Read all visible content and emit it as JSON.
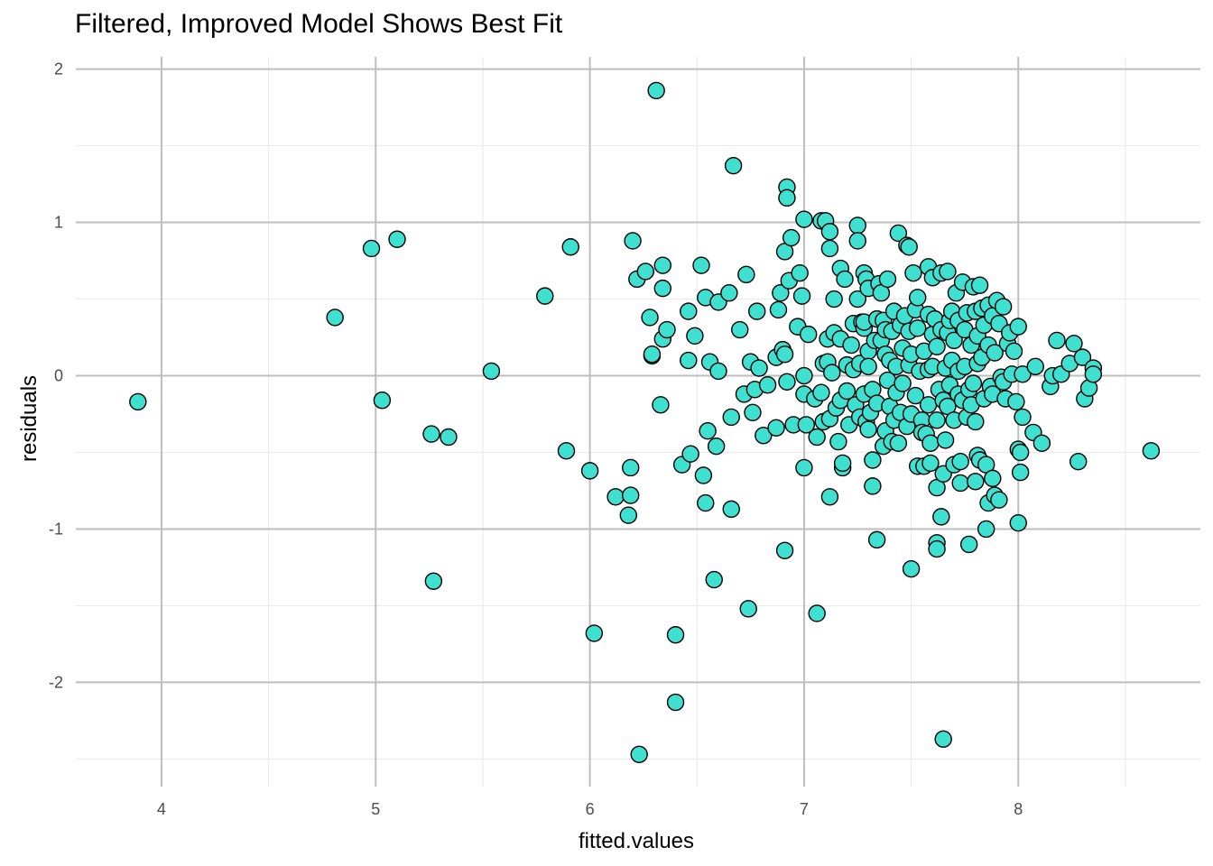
{
  "chart_data": {
    "type": "scatter",
    "title": "Filtered, Improved Model Shows Best Fit",
    "xlabel": "fitted.values",
    "ylabel": "residuals",
    "xlim": [
      3.6,
      8.85
    ],
    "ylim": [
      -2.68,
      2.08
    ],
    "x_ticks": [
      4,
      5,
      6,
      7,
      8
    ],
    "y_ticks": [
      -2,
      -1,
      0,
      1,
      2
    ],
    "x_tick_labels": [
      "4",
      "5",
      "6",
      "7",
      "8"
    ],
    "y_tick_labels": [
      "-2",
      "-1",
      "0",
      "1",
      "2"
    ],
    "grid": true,
    "point_fill": "#40E0D0",
    "point_stroke": "#000000",
    "points": [
      {
        "x": 3.89,
        "y": -0.17
      },
      {
        "x": 4.81,
        "y": 0.38
      },
      {
        "x": 4.98,
        "y": 0.83
      },
      {
        "x": 5.03,
        "y": -0.16
      },
      {
        "x": 5.1,
        "y": 0.89
      },
      {
        "x": 5.26,
        "y": -0.38
      },
      {
        "x": 5.27,
        "y": -1.34
      },
      {
        "x": 5.34,
        "y": -0.4
      },
      {
        "x": 5.54,
        "y": 0.03
      },
      {
        "x": 5.79,
        "y": 0.52
      },
      {
        "x": 5.89,
        "y": -0.49
      },
      {
        "x": 5.91,
        "y": 0.84
      },
      {
        "x": 6.0,
        "y": -0.62
      },
      {
        "x": 6.02,
        "y": -1.68
      },
      {
        "x": 6.12,
        "y": -0.79
      },
      {
        "x": 6.18,
        "y": -0.91
      },
      {
        "x": 6.19,
        "y": -0.6
      },
      {
        "x": 6.19,
        "y": -0.78
      },
      {
        "x": 6.2,
        "y": 0.88
      },
      {
        "x": 6.22,
        "y": 0.63
      },
      {
        "x": 6.23,
        "y": -2.47
      },
      {
        "x": 6.26,
        "y": 0.68
      },
      {
        "x": 6.28,
        "y": 0.38
      },
      {
        "x": 6.29,
        "y": 0.13
      },
      {
        "x": 6.29,
        "y": 0.14
      },
      {
        "x": 6.31,
        "y": 1.86
      },
      {
        "x": 6.33,
        "y": -0.19
      },
      {
        "x": 6.34,
        "y": 0.72
      },
      {
        "x": 6.34,
        "y": 0.57
      },
      {
        "x": 6.34,
        "y": 0.24
      },
      {
        "x": 6.36,
        "y": 0.3
      },
      {
        "x": 6.4,
        "y": -1.69
      },
      {
        "x": 6.4,
        "y": -2.13
      },
      {
        "x": 6.43,
        "y": -0.58
      },
      {
        "x": 6.46,
        "y": 0.42
      },
      {
        "x": 6.46,
        "y": 0.1
      },
      {
        "x": 6.47,
        "y": -0.51
      },
      {
        "x": 6.49,
        "y": 0.26
      },
      {
        "x": 6.52,
        "y": 0.72
      },
      {
        "x": 6.53,
        "y": -0.65
      },
      {
        "x": 6.54,
        "y": -0.83
      },
      {
        "x": 6.54,
        "y": 0.51
      },
      {
        "x": 6.55,
        "y": -0.36
      },
      {
        "x": 6.56,
        "y": 0.09
      },
      {
        "x": 6.58,
        "y": -1.33
      },
      {
        "x": 6.59,
        "y": -0.46
      },
      {
        "x": 6.6,
        "y": 0.03
      },
      {
        "x": 6.6,
        "y": 0.48
      },
      {
        "x": 6.65,
        "y": 0.54
      },
      {
        "x": 6.66,
        "y": -0.87
      },
      {
        "x": 6.66,
        "y": -0.27
      },
      {
        "x": 6.67,
        "y": 1.37
      },
      {
        "x": 6.7,
        "y": 0.3
      },
      {
        "x": 6.72,
        "y": -0.12
      },
      {
        "x": 6.73,
        "y": 0.66
      },
      {
        "x": 6.74,
        "y": -1.52
      },
      {
        "x": 6.75,
        "y": 0.09
      },
      {
        "x": 6.76,
        "y": -0.24
      },
      {
        "x": 6.77,
        "y": -0.09
      },
      {
        "x": 6.78,
        "y": 0.42
      },
      {
        "x": 6.79,
        "y": 0.05
      },
      {
        "x": 6.81,
        "y": -0.39
      },
      {
        "x": 6.83,
        "y": -0.06
      },
      {
        "x": 6.87,
        "y": -0.34
      },
      {
        "x": 6.87,
        "y": 0.12
      },
      {
        "x": 6.88,
        "y": 0.43
      },
      {
        "x": 6.89,
        "y": 0.54
      },
      {
        "x": 6.9,
        "y": 0.17
      },
      {
        "x": 6.91,
        "y": 0.14
      },
      {
        "x": 6.91,
        "y": -1.14
      },
      {
        "x": 6.91,
        "y": 0.81
      },
      {
        "x": 6.92,
        "y": 1.23
      },
      {
        "x": 6.92,
        "y": 1.16
      },
      {
        "x": 6.92,
        "y": -0.04
      },
      {
        "x": 6.93,
        "y": 0.62
      },
      {
        "x": 6.94,
        "y": 0.9
      },
      {
        "x": 6.95,
        "y": -0.32
      },
      {
        "x": 6.97,
        "y": 0.32
      },
      {
        "x": 6.98,
        "y": 0.67
      },
      {
        "x": 6.99,
        "y": 0.52
      },
      {
        "x": 7.0,
        "y": 1.02
      },
      {
        "x": 7.0,
        "y": 0.0
      },
      {
        "x": 7.0,
        "y": -0.6
      },
      {
        "x": 7.0,
        "y": -0.12
      },
      {
        "x": 7.01,
        "y": -0.32
      },
      {
        "x": 7.02,
        "y": 0.27
      },
      {
        "x": 7.05,
        "y": -0.15
      },
      {
        "x": 7.06,
        "y": -1.55
      },
      {
        "x": 7.06,
        "y": -0.4
      },
      {
        "x": 7.08,
        "y": 1.01
      },
      {
        "x": 7.08,
        "y": -0.11
      },
      {
        "x": 7.09,
        "y": -0.3
      },
      {
        "x": 7.09,
        "y": 0.08
      },
      {
        "x": 7.1,
        "y": 1.01
      },
      {
        "x": 7.11,
        "y": 0.24
      },
      {
        "x": 7.11,
        "y": 0.09
      },
      {
        "x": 7.12,
        "y": 0.94
      },
      {
        "x": 7.12,
        "y": 0.83
      },
      {
        "x": 7.12,
        "y": -0.79
      },
      {
        "x": 7.12,
        "y": -0.28
      },
      {
        "x": 7.13,
        "y": 0.02
      },
      {
        "x": 7.14,
        "y": 0.28
      },
      {
        "x": 7.14,
        "y": 0.5
      },
      {
        "x": 7.15,
        "y": -0.21
      },
      {
        "x": 7.16,
        "y": -0.43
      },
      {
        "x": 7.17,
        "y": 0.24
      },
      {
        "x": 7.17,
        "y": 0.7
      },
      {
        "x": 7.17,
        "y": -0.16
      },
      {
        "x": 7.18,
        "y": -0.6
      },
      {
        "x": 7.18,
        "y": -0.57
      },
      {
        "x": 7.19,
        "y": 0.63
      },
      {
        "x": 7.2,
        "y": -0.1
      },
      {
        "x": 7.2,
        "y": 0.07
      },
      {
        "x": 7.21,
        "y": -0.32
      },
      {
        "x": 7.22,
        "y": 0.2
      },
      {
        "x": 7.23,
        "y": 0.34
      },
      {
        "x": 7.23,
        "y": 0.04
      },
      {
        "x": 7.24,
        "y": -0.19
      },
      {
        "x": 7.25,
        "y": 0.98
      },
      {
        "x": 7.25,
        "y": 0.5
      },
      {
        "x": 7.25,
        "y": 0.88
      },
      {
        "x": 7.26,
        "y": 0.08
      },
      {
        "x": 7.26,
        "y": -0.27
      },
      {
        "x": 7.27,
        "y": 0.35
      },
      {
        "x": 7.28,
        "y": -0.12
      },
      {
        "x": 7.28,
        "y": 0.31
      },
      {
        "x": 7.28,
        "y": 0.67
      },
      {
        "x": 7.28,
        "y": 0.35
      },
      {
        "x": 7.29,
        "y": -0.3
      },
      {
        "x": 7.29,
        "y": 0.63
      },
      {
        "x": 7.3,
        "y": 0.16
      },
      {
        "x": 7.3,
        "y": 0.06
      },
      {
        "x": 7.3,
        "y": 0.57
      },
      {
        "x": 7.3,
        "y": -0.35
      },
      {
        "x": 7.31,
        "y": -0.24
      },
      {
        "x": 7.32,
        "y": -0.72
      },
      {
        "x": 7.32,
        "y": -0.55
      },
      {
        "x": 7.32,
        "y": -0.09
      },
      {
        "x": 7.33,
        "y": 0.23
      },
      {
        "x": 7.34,
        "y": -1.07
      },
      {
        "x": 7.34,
        "y": -0.18
      },
      {
        "x": 7.34,
        "y": 0.37
      },
      {
        "x": 7.35,
        "y": 0.6
      },
      {
        "x": 7.36,
        "y": 0.54
      },
      {
        "x": 7.36,
        "y": 0.23
      },
      {
        "x": 7.37,
        "y": 0.36
      },
      {
        "x": 7.37,
        "y": -0.46
      },
      {
        "x": 7.38,
        "y": 0.14
      },
      {
        "x": 7.38,
        "y": -0.36
      },
      {
        "x": 7.38,
        "y": 0.3
      },
      {
        "x": 7.39,
        "y": -0.03
      },
      {
        "x": 7.39,
        "y": 0.63
      },
      {
        "x": 7.4,
        "y": -0.2
      },
      {
        "x": 7.4,
        "y": 0.1
      },
      {
        "x": 7.41,
        "y": 0.29
      },
      {
        "x": 7.41,
        "y": -0.43
      },
      {
        "x": 7.42,
        "y": 0.42
      },
      {
        "x": 7.42,
        "y": -0.29
      },
      {
        "x": 7.43,
        "y": -0.11
      },
      {
        "x": 7.43,
        "y": 0.06
      },
      {
        "x": 7.44,
        "y": 0.93
      },
      {
        "x": 7.44,
        "y": -0.44
      },
      {
        "x": 7.45,
        "y": 0.33
      },
      {
        "x": 7.45,
        "y": -0.24
      },
      {
        "x": 7.46,
        "y": 0.18
      },
      {
        "x": 7.46,
        "y": -0.05
      },
      {
        "x": 7.47,
        "y": 0.39
      },
      {
        "x": 7.48,
        "y": -0.33
      },
      {
        "x": 7.48,
        "y": 0.85
      },
      {
        "x": 7.49,
        "y": 0.84
      },
      {
        "x": 7.49,
        "y": 0.29
      },
      {
        "x": 7.49,
        "y": 0.07
      },
      {
        "x": 7.5,
        "y": -1.26
      },
      {
        "x": 7.5,
        "y": -0.25
      },
      {
        "x": 7.5,
        "y": 0.14
      },
      {
        "x": 7.51,
        "y": 0.67
      },
      {
        "x": 7.52,
        "y": 0.43
      },
      {
        "x": 7.52,
        "y": -0.13
      },
      {
        "x": 7.53,
        "y": -0.59
      },
      {
        "x": 7.53,
        "y": 0.31
      },
      {
        "x": 7.53,
        "y": 0.51
      },
      {
        "x": 7.54,
        "y": 0.03
      },
      {
        "x": 7.55,
        "y": -0.29
      },
      {
        "x": 7.55,
        "y": -0.37
      },
      {
        "x": 7.56,
        "y": -0.59
      },
      {
        "x": 7.56,
        "y": 0.16
      },
      {
        "x": 7.57,
        "y": -0.38
      },
      {
        "x": 7.58,
        "y": 0.71
      },
      {
        "x": 7.58,
        "y": 0.4
      },
      {
        "x": 7.58,
        "y": -0.19
      },
      {
        "x": 7.58,
        "y": 0.04
      },
      {
        "x": 7.59,
        "y": -0.57
      },
      {
        "x": 7.59,
        "y": -0.44
      },
      {
        "x": 7.6,
        "y": 0.27
      },
      {
        "x": 7.6,
        "y": 0.64
      },
      {
        "x": 7.6,
        "y": 0.06
      },
      {
        "x": 7.61,
        "y": 0.37
      },
      {
        "x": 7.62,
        "y": -0.29
      },
      {
        "x": 7.62,
        "y": 0.19
      },
      {
        "x": 7.62,
        "y": -1.09
      },
      {
        "x": 7.62,
        "y": -1.13
      },
      {
        "x": 7.62,
        "y": -0.73
      },
      {
        "x": 7.63,
        "y": -0.09
      },
      {
        "x": 7.64,
        "y": 0.3
      },
      {
        "x": 7.64,
        "y": -0.92
      },
      {
        "x": 7.64,
        "y": 0.67
      },
      {
        "x": 7.65,
        "y": -0.64
      },
      {
        "x": 7.65,
        "y": -0.16
      },
      {
        "x": 7.65,
        "y": -2.37
      },
      {
        "x": 7.66,
        "y": 0.05
      },
      {
        "x": 7.66,
        "y": -0.42
      },
      {
        "x": 7.67,
        "y": 0.68
      },
      {
        "x": 7.67,
        "y": 0.28
      },
      {
        "x": 7.67,
        "y": -0.2
      },
      {
        "x": 7.68,
        "y": 0.36
      },
      {
        "x": 7.68,
        "y": -0.06
      },
      {
        "x": 7.69,
        "y": 0.42
      },
      {
        "x": 7.69,
        "y": 0.1
      },
      {
        "x": 7.7,
        "y": -0.29
      },
      {
        "x": 7.7,
        "y": -0.58
      },
      {
        "x": 7.7,
        "y": 0.23
      },
      {
        "x": 7.71,
        "y": 0.54
      },
      {
        "x": 7.72,
        "y": -0.12
      },
      {
        "x": 7.72,
        "y": 0.03
      },
      {
        "x": 7.72,
        "y": 0.36
      },
      {
        "x": 7.73,
        "y": -0.56
      },
      {
        "x": 7.73,
        "y": -0.7
      },
      {
        "x": 7.74,
        "y": 0.61
      },
      {
        "x": 7.74,
        "y": -0.16
      },
      {
        "x": 7.75,
        "y": 0.06
      },
      {
        "x": 7.75,
        "y": 0.3
      },
      {
        "x": 7.76,
        "y": -0.27
      },
      {
        "x": 7.76,
        "y": 0.41
      },
      {
        "x": 7.77,
        "y": -1.1
      },
      {
        "x": 7.77,
        "y": -0.09
      },
      {
        "x": 7.78,
        "y": 0.2
      },
      {
        "x": 7.78,
        "y": -0.19
      },
      {
        "x": 7.79,
        "y": 0.58
      },
      {
        "x": 7.79,
        "y": -0.05
      },
      {
        "x": 7.8,
        "y": 0.42
      },
      {
        "x": 7.8,
        "y": -0.3
      },
      {
        "x": 7.8,
        "y": -0.69
      },
      {
        "x": 7.81,
        "y": 0.26
      },
      {
        "x": 7.81,
        "y": 0.08
      },
      {
        "x": 7.81,
        "y": -0.52
      },
      {
        "x": 7.82,
        "y": -0.55
      },
      {
        "x": 7.82,
        "y": 0.59
      },
      {
        "x": 7.83,
        "y": 0.44
      },
      {
        "x": 7.83,
        "y": 0.12
      },
      {
        "x": 7.84,
        "y": -0.15
      },
      {
        "x": 7.84,
        "y": 0.33
      },
      {
        "x": 7.85,
        "y": -0.58
      },
      {
        "x": 7.85,
        "y": -1.0
      },
      {
        "x": 7.86,
        "y": 0.46
      },
      {
        "x": 7.86,
        "y": -0.83
      },
      {
        "x": 7.86,
        "y": 0.2
      },
      {
        "x": 7.87,
        "y": -0.07
      },
      {
        "x": 7.88,
        "y": 0.39
      },
      {
        "x": 7.88,
        "y": -0.67
      },
      {
        "x": 7.88,
        "y": -0.12
      },
      {
        "x": 7.89,
        "y": -0.78
      },
      {
        "x": 7.89,
        "y": 0.15
      },
      {
        "x": 7.9,
        "y": 0.49
      },
      {
        "x": 7.91,
        "y": -0.81
      },
      {
        "x": 7.91,
        "y": 0.34
      },
      {
        "x": 7.92,
        "y": -0.01
      },
      {
        "x": 7.93,
        "y": 0.45
      },
      {
        "x": 7.93,
        "y": -0.04
      },
      {
        "x": 7.94,
        "y": -0.15
      },
      {
        "x": 7.95,
        "y": 0.21
      },
      {
        "x": 7.96,
        "y": 0.28
      },
      {
        "x": 7.97,
        "y": 0.01
      },
      {
        "x": 7.98,
        "y": 0.16
      },
      {
        "x": 7.99,
        "y": -0.17
      },
      {
        "x": 8.0,
        "y": -0.96
      },
      {
        "x": 8.0,
        "y": -0.48
      },
      {
        "x": 8.0,
        "y": 0.32
      },
      {
        "x": 8.01,
        "y": -0.63
      },
      {
        "x": 8.01,
        "y": -0.5
      },
      {
        "x": 8.02,
        "y": -0.27
      },
      {
        "x": 8.02,
        "y": 0.01
      },
      {
        "x": 8.07,
        "y": -0.37
      },
      {
        "x": 8.08,
        "y": 0.06
      },
      {
        "x": 8.11,
        "y": -0.44
      },
      {
        "x": 8.15,
        "y": -0.07
      },
      {
        "x": 8.16,
        "y": 0.0
      },
      {
        "x": 8.18,
        "y": 0.23
      },
      {
        "x": 8.2,
        "y": 0.01
      },
      {
        "x": 8.24,
        "y": 0.08
      },
      {
        "x": 8.26,
        "y": 0.21
      },
      {
        "x": 8.28,
        "y": -0.56
      },
      {
        "x": 8.3,
        "y": 0.12
      },
      {
        "x": 8.31,
        "y": -0.15
      },
      {
        "x": 8.33,
        "y": -0.08
      },
      {
        "x": 8.35,
        "y": 0.05
      },
      {
        "x": 8.35,
        "y": 0.01
      },
      {
        "x": 8.62,
        "y": -0.49
      }
    ]
  }
}
